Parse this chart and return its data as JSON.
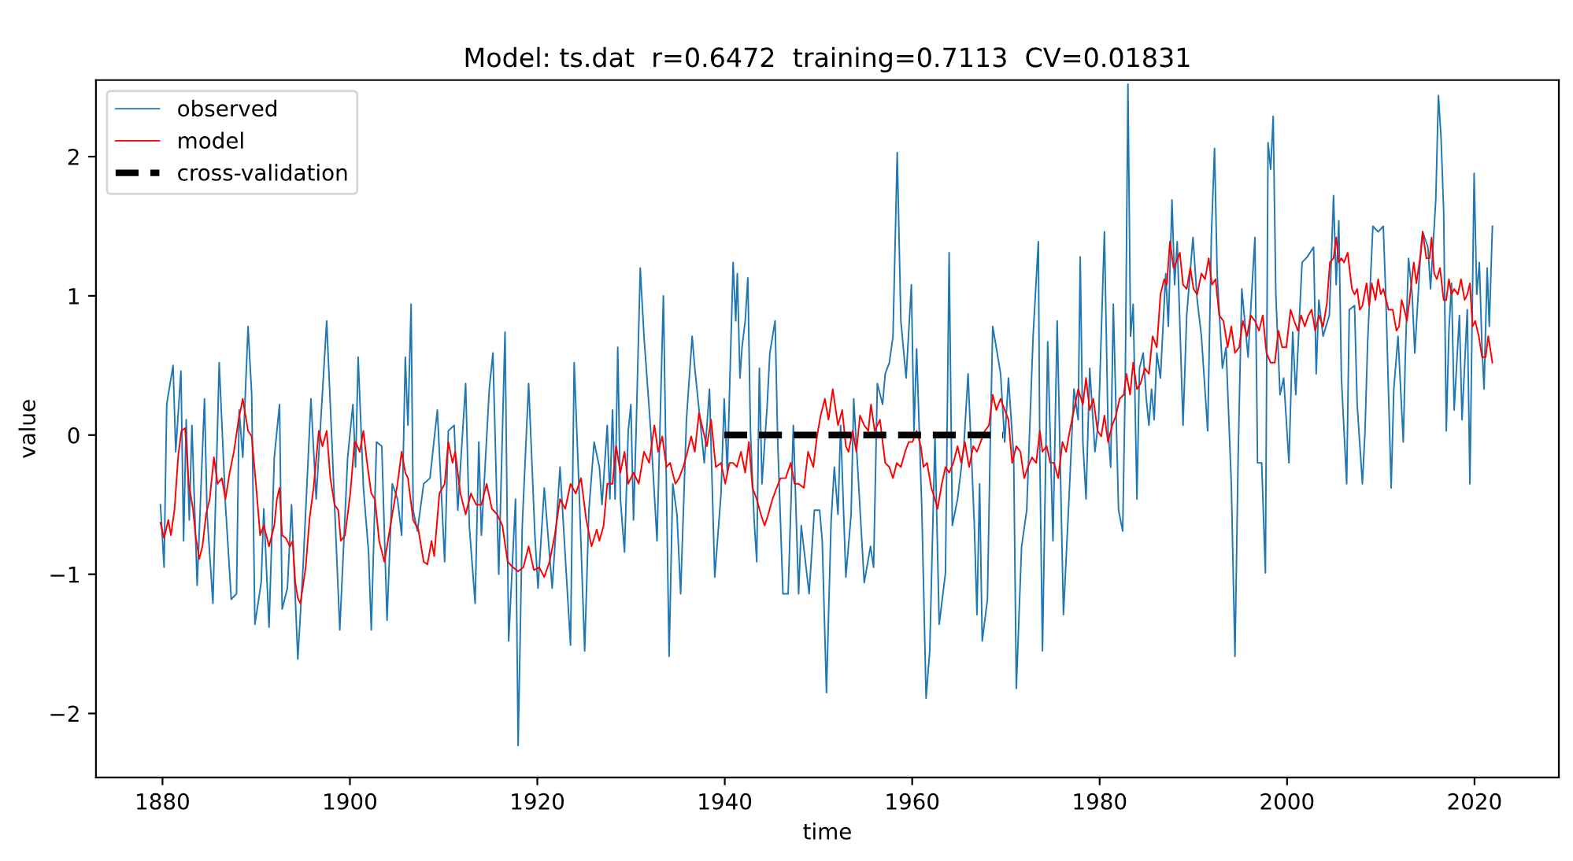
{
  "chart_data": {
    "type": "line",
    "title": "Model: ts.dat  r=0.6472  training=0.7113  CV=0.01831",
    "xlabel": "time",
    "ylabel": "value",
    "xlim": [
      1872.9,
      2029.0
    ],
    "ylim": [
      -2.46,
      2.55
    ],
    "xticks": [
      1880,
      1900,
      1920,
      1940,
      1960,
      1980,
      2000,
      2020
    ],
    "yticks": [
      -2,
      -1,
      0,
      1,
      2
    ],
    "grid": false,
    "legend": "top left",
    "series": [
      {
        "name": "observed",
        "color": "#1f77b4",
        "line_style": "solid",
        "x": [
          1879.78,
          1880.17,
          1880.45,
          1881.13,
          1881.41,
          1881.97,
          1882.25,
          1882.53,
          1882.86,
          1883.14,
          1883.7,
          1884.48,
          1884.76,
          1885.38,
          1886.05,
          1886.72,
          1887.34,
          1887.9,
          1888.18,
          1888.57,
          1889.13,
          1889.52,
          1889.86,
          1890.53,
          1890.81,
          1891.37,
          1891.93,
          1892.49,
          1892.77,
          1893.33,
          1893.77,
          1894.44,
          1895.0,
          1895.84,
          1896.4,
          1897.52,
          1898.08,
          1898.92,
          1899.76,
          1900.32,
          1900.6,
          1900.88,
          1901.44,
          1901.99,
          1902.28,
          1902.84,
          1903.4,
          1903.96,
          1904.52,
          1905.08,
          1905.52,
          1905.91,
          1906.19,
          1906.53,
          1906.75,
          1907.2,
          1907.87,
          1908.54,
          1909.33,
          1910.11,
          1910.5,
          1911.12,
          1911.51,
          1912.35,
          1912.74,
          1913.36,
          1913.75,
          1914.03,
          1914.87,
          1915.26,
          1915.88,
          1916.55,
          1916.94,
          1917.67,
          1917.95,
          1918.39,
          1919.07,
          1919.74,
          1920.07,
          1920.74,
          1921.58,
          1922.42,
          1923.54,
          1923.93,
          1924.49,
          1925.05,
          1925.5,
          1926.06,
          1926.62,
          1926.9,
          1927.46,
          1927.74,
          1928.02,
          1928.3,
          1928.58,
          1928.86,
          1929.3,
          1929.7,
          1929.98,
          1930.26,
          1930.54,
          1930.98,
          1931.38,
          1932.1,
          1932.77,
          1933.45,
          1934.06,
          1934.45,
          1934.9,
          1935.29,
          1935.91,
          1936.52,
          1936.8,
          1937.36,
          1937.81,
          1938.37,
          1938.93,
          1939.6,
          1939.94,
          1940.27,
          1940.89,
          1941.17,
          1941.34,
          1941.62,
          1941.84,
          1942.18,
          1942.46,
          1942.74,
          1943.13,
          1943.41,
          1943.69,
          1943.97,
          1944.53,
          1944.81,
          1945.37,
          1945.65,
          1946.21,
          1946.76,
          1947.32,
          1947.88,
          1948.16,
          1949.0,
          1949.56,
          1950.12,
          1950.4,
          1950.85,
          1951.35,
          1951.69,
          1952.08,
          1952.36,
          1952.92,
          1953.48,
          1953.76,
          1954.21,
          1954.88,
          1955.55,
          1955.88,
          1956.28,
          1956.84,
          1957.12,
          1957.56,
          1957.95,
          1958.4,
          1958.79,
          1959.35,
          1959.91,
          1960.19,
          1960.47,
          1961.03,
          1961.48,
          1961.87,
          1962.43,
          1962.88,
          1963.55,
          1963.94,
          1964.28,
          1964.84,
          1965.51,
          1965.96,
          1966.63,
          1966.91,
          1967.19,
          1967.47,
          1968.03,
          1968.31,
          1968.59,
          1968.87,
          1969.43,
          1969.87,
          1970.27,
          1970.83,
          1971.11,
          1971.67,
          1972.22,
          1972.9,
          1973.46,
          1973.62,
          1973.9,
          1974.46,
          1975.02,
          1975.47,
          1976.14,
          1976.7,
          1977.26,
          1977.71,
          1977.93,
          1978.21,
          1978.55,
          1978.94,
          1979.5,
          1979.89,
          1980.51,
          1980.9,
          1981.18,
          1981.46,
          1982.02,
          1982.46,
          1982.74,
          1983.02,
          1983.3,
          1983.58,
          1983.98,
          1984.25,
          1984.65,
          1984.98,
          1985.26,
          1985.54,
          1985.82,
          1986.1,
          1986.49,
          1987.05,
          1987.33,
          1987.72,
          1988.0,
          1988.28,
          1988.62,
          1988.9,
          1989.29,
          1989.96,
          1990.41,
          1990.86,
          1991.53,
          1991.92,
          1992.26,
          1992.54,
          1993.1,
          1993.49,
          1994.05,
          1994.44,
          1994.78,
          1995.17,
          1995.84,
          1996.12,
          1996.57,
          1996.85,
          1997.29,
          1997.69,
          1997.97,
          1998.25,
          1998.52,
          1998.8,
          1999.25,
          1999.64,
          2000.2,
          2000.6,
          2000.93,
          2001.6,
          2002.16,
          2002.83,
          2003.11,
          2003.39,
          2003.84,
          2004.51,
          2004.96,
          2005.24,
          2005.52,
          2005.8,
          2006.36,
          2006.64,
          2007.2,
          2007.48,
          2008.04,
          2008.32,
          2008.6,
          2009.16,
          2009.72,
          2010.27,
          2010.55,
          2011.11,
          2011.39,
          2011.84,
          2012.4,
          2012.63,
          2012.96,
          2013.35,
          2013.63,
          2014.19,
          2014.47,
          2015.03,
          2015.31,
          2015.87,
          2016.15,
          2016.43,
          2016.71,
          2016.99,
          2017.27,
          2017.55,
          2017.83,
          2018.39,
          2018.67,
          2019.23,
          2019.51,
          2019.96,
          2020.24,
          2020.52,
          2020.8,
          2021.02,
          2021.35,
          2021.58,
          2021.91
        ],
        "values": [
          -0.5,
          -0.95,
          0.22,
          0.5,
          -0.12,
          0.46,
          -0.76,
          0.11,
          -0.61,
          0.07,
          -1.08,
          0.26,
          -0.57,
          -1.21,
          0.52,
          -0.5,
          -1.18,
          -1.14,
          0.18,
          -0.16,
          0.78,
          0.29,
          -1.36,
          -1.06,
          -0.53,
          -1.38,
          -0.16,
          0.22,
          -1.25,
          -1.1,
          -0.5,
          -1.61,
          -0.95,
          0.26,
          -0.46,
          0.82,
          -0.05,
          -1.4,
          -0.16,
          0.22,
          -0.23,
          0.56,
          -0.38,
          -0.84,
          -1.4,
          -0.05,
          -0.08,
          -1.33,
          -0.35,
          -0.46,
          -0.72,
          0.56,
          0.07,
          0.94,
          -0.54,
          -0.69,
          -0.35,
          -0.31,
          0.18,
          -0.91,
          0.03,
          0.07,
          -0.54,
          0.37,
          -0.65,
          -1.21,
          -0.05,
          -0.72,
          0.33,
          0.59,
          -1.0,
          0.74,
          -1.48,
          -0.46,
          -2.23,
          -0.65,
          0.37,
          -0.72,
          -1.1,
          -0.38,
          -1.1,
          -0.23,
          -1.51,
          0.52,
          -0.46,
          -1.55,
          -0.54,
          -0.05,
          -0.23,
          -0.5,
          0.07,
          -0.46,
          0.18,
          -0.46,
          0.63,
          -0.46,
          -0.84,
          0.03,
          0.22,
          -0.61,
          0.03,
          1.2,
          0.71,
          0.03,
          -0.76,
          1.0,
          -1.59,
          -0.35,
          -0.57,
          -1.14,
          0.11,
          0.71,
          0.48,
          0.11,
          -0.2,
          0.33,
          -1.02,
          -0.42,
          0.26,
          -0.27,
          1.24,
          0.82,
          1.16,
          0.41,
          0.63,
          0.82,
          1.13,
          0.03,
          -0.61,
          -0.91,
          0.48,
          -0.35,
          0.22,
          0.59,
          0.82,
          -0.05,
          -1.14,
          -1.14,
          0.07,
          -1.14,
          -0.65,
          -1.14,
          -0.54,
          -0.54,
          -0.76,
          -1.85,
          -0.61,
          -0.23,
          -0.57,
          0.07,
          -1.02,
          -0.57,
          0.26,
          -0.27,
          -1.06,
          -0.8,
          -0.95,
          0.37,
          0.22,
          0.44,
          0.52,
          0.71,
          2.03,
          0.82,
          0.41,
          1.08,
          0.03,
          0.62,
          -0.54,
          -1.89,
          -1.55,
          -0.01,
          -1.36,
          -0.99,
          1.31,
          -0.65,
          -0.46,
          -0.08,
          0.44,
          -0.65,
          -1.29,
          -0.35,
          -1.48,
          -1.18,
          -0.12,
          0.78,
          0.67,
          0.44,
          -0.05,
          0.41,
          -0.16,
          -1.82,
          -0.8,
          -0.54,
          0.71,
          1.39,
          -0.16,
          -1.55,
          0.67,
          -0.76,
          0.82,
          -1.29,
          -0.5,
          0.33,
          0.11,
          1.28,
          -0.05,
          -0.46,
          0.48,
          -0.12,
          0.11,
          1.46,
          0.03,
          -0.23,
          0.94,
          -0.54,
          -0.69,
          0.41,
          2.52,
          0.71,
          0.94,
          -0.46,
          0.48,
          0.59,
          0.26,
          0.07,
          0.33,
          0.11,
          0.59,
          0.41,
          1.16,
          0.78,
          1.69,
          1.08,
          1.39,
          0.67,
          0.07,
          0.86,
          1.42,
          0.97,
          0.71,
          0.03,
          1.42,
          2.06,
          1.16,
          0.48,
          0.63,
          -0.35,
          -1.59,
          -0.16,
          1.05,
          0.56,
          0.9,
          1.42,
          -0.2,
          -0.2,
          -0.99,
          2.1,
          1.91,
          2.29,
          1.01,
          0.29,
          0.41,
          -0.2,
          0.74,
          0.29,
          1.24,
          1.28,
          1.35,
          0.44,
          0.97,
          0.71,
          0.86,
          1.72,
          1.08,
          1.54,
          0.41,
          -0.35,
          0.9,
          0.93,
          0.22,
          -0.35,
          0.03,
          0.67,
          1.5,
          1.46,
          1.5,
          0.97,
          -0.38,
          0.33,
          0.71,
          -0.05,
          0.59,
          1.27,
          1.01,
          0.59,
          1.24,
          1.46,
          1.35,
          1.05,
          1.69,
          2.44,
          2.14,
          1.61,
          0.03,
          0.75,
          1.09,
          0.18,
          0.86,
          0.11,
          0.9,
          -0.35,
          1.88,
          1.01,
          1.24,
          0.63,
          0.33,
          1.2,
          0.78,
          1.5
        ]
      },
      {
        "name": "model",
        "color": "#ff0000",
        "line_style": "solid",
        "x": [
          1879.78,
          1880.17,
          1880.62,
          1880.9,
          1881.29,
          1881.69,
          1882.02,
          1882.41,
          1882.8,
          1883.25,
          1883.53,
          1883.92,
          1884.26,
          1884.65,
          1885.04,
          1885.49,
          1885.88,
          1886.33,
          1886.72,
          1887.17,
          1887.62,
          1888.12,
          1888.57,
          1889.13,
          1889.52,
          1889.97,
          1890.42,
          1890.81,
          1891.37,
          1891.93,
          1892.21,
          1892.49,
          1892.77,
          1893.16,
          1893.61,
          1893.89,
          1894.17,
          1894.44,
          1894.72,
          1895.28,
          1895.68,
          1896.12,
          1896.68,
          1897.07,
          1897.52,
          1897.91,
          1898.36,
          1898.75,
          1899.03,
          1899.48,
          1900.04,
          1900.49,
          1900.6,
          1901.05,
          1901.44,
          1901.83,
          1902.28,
          1902.67,
          1903.12,
          1903.68,
          1903.96,
          1904.52,
          1905.08,
          1905.52,
          1905.91,
          1906.19,
          1906.75,
          1907.31,
          1907.87,
          1908.27,
          1908.71,
          1908.99,
          1909.55,
          1910.11,
          1910.5,
          1910.95,
          1911.23,
          1911.79,
          1912.35,
          1912.91,
          1913.47,
          1914.03,
          1914.59,
          1915.15,
          1915.71,
          1916.27,
          1916.83,
          1917.39,
          1917.95,
          1918.51,
          1919.07,
          1919.63,
          1920.19,
          1920.74,
          1921.3,
          1921.86,
          1922.42,
          1922.98,
          1923.54,
          1924.1,
          1924.66,
          1925.22,
          1925.78,
          1926.34,
          1926.62,
          1927.07,
          1927.46,
          1928.02,
          1928.41,
          1928.86,
          1929.3,
          1929.7,
          1930.26,
          1930.82,
          1931.38,
          1931.93,
          1932.49,
          1932.89,
          1933.33,
          1933.78,
          1934.17,
          1934.73,
          1935.12,
          1935.57,
          1936.02,
          1936.41,
          1936.8,
          1937.25,
          1937.7,
          1938.09,
          1938.54,
          1939.04,
          1939.6,
          1940.05,
          1940.5,
          1940.89,
          1941.28,
          1941.73,
          1942.18,
          1942.57,
          1942.96,
          1943.41,
          1943.85,
          1944.25,
          1944.64,
          1945.09,
          1945.53,
          1945.93,
          1946.49,
          1947.04,
          1947.44,
          1947.88,
          1948.44,
          1948.89,
          1949.45,
          1949.84,
          1950.23,
          1950.68,
          1951.07,
          1951.52,
          1952.08,
          1952.53,
          1952.92,
          1953.2,
          1953.65,
          1954.04,
          1954.43,
          1954.88,
          1955.32,
          1955.6,
          1955.99,
          1956.56,
          1957.12,
          1957.56,
          1957.95,
          1958.35,
          1958.79,
          1959.24,
          1959.63,
          1960.03,
          1960.47,
          1960.92,
          1961.2,
          1961.59,
          1962.04,
          1962.43,
          1962.71,
          1963.16,
          1963.55,
          1963.94,
          1964.39,
          1964.84,
          1965.23,
          1965.62,
          1966.07,
          1966.52,
          1966.91,
          1967.3,
          1967.75,
          1968.19,
          1968.59,
          1968.98,
          1969.43,
          1969.87,
          1970.27,
          1970.66,
          1971.11,
          1971.55,
          1971.95,
          1972.34,
          1972.78,
          1973.23,
          1973.62,
          1973.9,
          1974.35,
          1974.74,
          1975.13,
          1975.58,
          1976.03,
          1976.42,
          1976.81,
          1977.26,
          1977.71,
          1978.21,
          1978.55,
          1978.94,
          1979.33,
          1979.78,
          1980.17,
          1980.51,
          1980.9,
          1981.34,
          1981.74,
          1982.13,
          1982.58,
          1982.86,
          1983.25,
          1983.58,
          1983.98,
          1984.37,
          1984.81,
          1985.26,
          1985.65,
          1986.1,
          1986.49,
          1986.89,
          1987.17,
          1987.5,
          1987.89,
          1988.17,
          1988.56,
          1988.9,
          1989.29,
          1989.68,
          1990.02,
          1990.41,
          1990.86,
          1991.25,
          1991.64,
          1991.98,
          1992.37,
          1992.76,
          1993.21,
          1993.66,
          1994.05,
          1994.44,
          1994.89,
          1995.28,
          1995.73,
          1996.12,
          1996.57,
          1997.01,
          1997.41,
          1997.8,
          1998.25,
          1998.69,
          1999.08,
          1999.48,
          1999.92,
          2000.37,
          2000.76,
          2001.15,
          2001.49,
          2001.89,
          2002.28,
          2002.62,
          2003.01,
          2003.4,
          2003.84,
          2004.24,
          2004.57,
          2004.96,
          2005.24,
          2005.52,
          2005.8,
          2006.08,
          2006.47,
          2006.92,
          2007.2,
          2007.48,
          2007.76,
          2008.04,
          2008.48,
          2008.76,
          2009.04,
          2009.44,
          2009.72,
          2010.0,
          2010.27,
          2010.83,
          2011.28,
          2011.67,
          2011.95,
          2012.23,
          2012.51,
          2012.79,
          2013.07,
          2013.52,
          2013.8,
          2014.19,
          2014.47,
          2014.86,
          2015.2,
          2015.42,
          2015.7,
          2015.98,
          2016.32,
          2016.71,
          2016.99,
          2017.27,
          2017.55,
          2017.83,
          2018.22,
          2018.56,
          2018.95,
          2019.23,
          2019.51,
          2019.79,
          2020.07,
          2020.46,
          2020.8,
          2021.19,
          2021.47,
          2021.91
        ],
        "values": [
          -0.63,
          -0.74,
          -0.61,
          -0.72,
          -0.53,
          -0.14,
          0.03,
          0.05,
          -0.35,
          -0.53,
          -0.72,
          -0.89,
          -0.8,
          -0.57,
          -0.46,
          -0.16,
          -0.35,
          -0.31,
          -0.46,
          -0.27,
          -0.12,
          0.11,
          0.26,
          0.03,
          -0.01,
          -0.35,
          -0.72,
          -0.65,
          -0.8,
          -0.65,
          -0.46,
          -0.38,
          -0.72,
          -0.74,
          -0.8,
          -0.76,
          -1.06,
          -1.17,
          -1.21,
          -0.95,
          -0.61,
          -0.38,
          0.03,
          -0.08,
          0.03,
          -0.31,
          -0.5,
          -0.54,
          -0.76,
          -0.72,
          -0.42,
          -0.05,
          -0.05,
          -0.12,
          0.03,
          -0.2,
          -0.42,
          -0.46,
          -0.76,
          -0.91,
          -0.8,
          -0.57,
          -0.35,
          -0.12,
          -0.27,
          -0.31,
          -0.61,
          -0.68,
          -0.91,
          -0.93,
          -0.76,
          -0.87,
          -0.42,
          -0.35,
          -0.05,
          -0.2,
          -0.12,
          -0.42,
          -0.57,
          -0.42,
          -0.5,
          -0.5,
          -0.35,
          -0.53,
          -0.57,
          -0.65,
          -0.91,
          -0.95,
          -0.98,
          -0.95,
          -0.8,
          -0.97,
          -0.95,
          -1.02,
          -0.91,
          -0.72,
          -0.46,
          -0.53,
          -0.35,
          -0.42,
          -0.31,
          -0.61,
          -0.8,
          -0.68,
          -0.76,
          -0.65,
          -0.35,
          -0.35,
          -0.08,
          -0.27,
          -0.12,
          -0.35,
          -0.27,
          -0.35,
          -0.12,
          -0.2,
          0.07,
          -0.12,
          -0.01,
          -0.23,
          -0.2,
          -0.35,
          -0.31,
          -0.23,
          -0.12,
          -0.01,
          -0.12,
          0.16,
          0.03,
          -0.08,
          0.11,
          -0.23,
          -0.2,
          -0.35,
          -0.2,
          -0.2,
          -0.23,
          -0.12,
          -0.27,
          -0.05,
          -0.38,
          -0.46,
          -0.57,
          -0.65,
          -0.57,
          -0.46,
          -0.38,
          -0.31,
          -0.31,
          -0.2,
          -0.35,
          -0.35,
          -0.38,
          -0.12,
          -0.23,
          -0.01,
          0.14,
          0.26,
          0.11,
          0.33,
          0.07,
          0.18,
          -0.08,
          -0.12,
          0.03,
          -0.12,
          0.14,
          0.07,
          0.03,
          0.22,
          0.03,
          0.11,
          -0.2,
          -0.23,
          -0.31,
          -0.2,
          -0.23,
          -0.12,
          -0.05,
          -0.05,
          0.03,
          -0.08,
          -0.23,
          -0.2,
          -0.38,
          -0.46,
          -0.53,
          -0.35,
          -0.23,
          -0.27,
          -0.2,
          -0.08,
          -0.2,
          -0.05,
          -0.23,
          -0.08,
          -0.12,
          -0.05,
          0.03,
          0.07,
          0.29,
          0.18,
          0.26,
          0.18,
          0.11,
          -0.2,
          -0.08,
          -0.12,
          -0.31,
          -0.23,
          -0.16,
          -0.2,
          0.03,
          -0.12,
          -0.08,
          -0.2,
          -0.2,
          -0.31,
          -0.05,
          -0.12,
          0.03,
          0.18,
          0.33,
          0.22,
          0.41,
          0.18,
          0.26,
          0.03,
          -0.01,
          0.14,
          -0.05,
          0.07,
          0.14,
          0.26,
          0.29,
          0.44,
          0.29,
          0.52,
          0.33,
          0.37,
          0.48,
          0.44,
          0.71,
          0.63,
          1.01,
          1.12,
          1.08,
          1.39,
          1.2,
          1.24,
          1.31,
          1.08,
          1.05,
          1.2,
          1.05,
          1.01,
          1.16,
          1.12,
          1.27,
          1.08,
          1.12,
          0.86,
          0.82,
          0.63,
          0.78,
          0.59,
          0.63,
          0.82,
          0.71,
          0.86,
          0.82,
          0.75,
          0.86,
          0.59,
          0.52,
          0.52,
          0.75,
          0.63,
          0.63,
          0.9,
          0.82,
          0.75,
          0.86,
          0.78,
          0.86,
          0.9,
          0.75,
          0.86,
          0.78,
          0.94,
          1.24,
          1.27,
          1.42,
          1.24,
          1.27,
          1.24,
          1.31,
          1.05,
          1.01,
          1.05,
          0.9,
          0.93,
          1.09,
          0.93,
          1.09,
          0.97,
          1.12,
          1.01,
          1.05,
          0.9,
          0.9,
          0.75,
          0.78,
          0.97,
          0.9,
          0.82,
          0.97,
          1.24,
          1.09,
          1.27,
          1.46,
          1.27,
          1.27,
          1.42,
          1.16,
          1.12,
          1.2,
          0.97,
          0.97,
          1.12,
          1.01,
          1.05,
          1.01,
          1.12,
          0.97,
          1.01,
          1.09,
          0.78,
          0.82,
          0.71,
          0.56,
          0.56,
          0.71,
          0.52
        ]
      },
      {
        "name": "cross-validation",
        "color": "#000000",
        "line_style": "dashed",
        "x": [
          1939.94,
          1969.7
        ],
        "values": [
          0,
          0
        ]
      }
    ]
  }
}
